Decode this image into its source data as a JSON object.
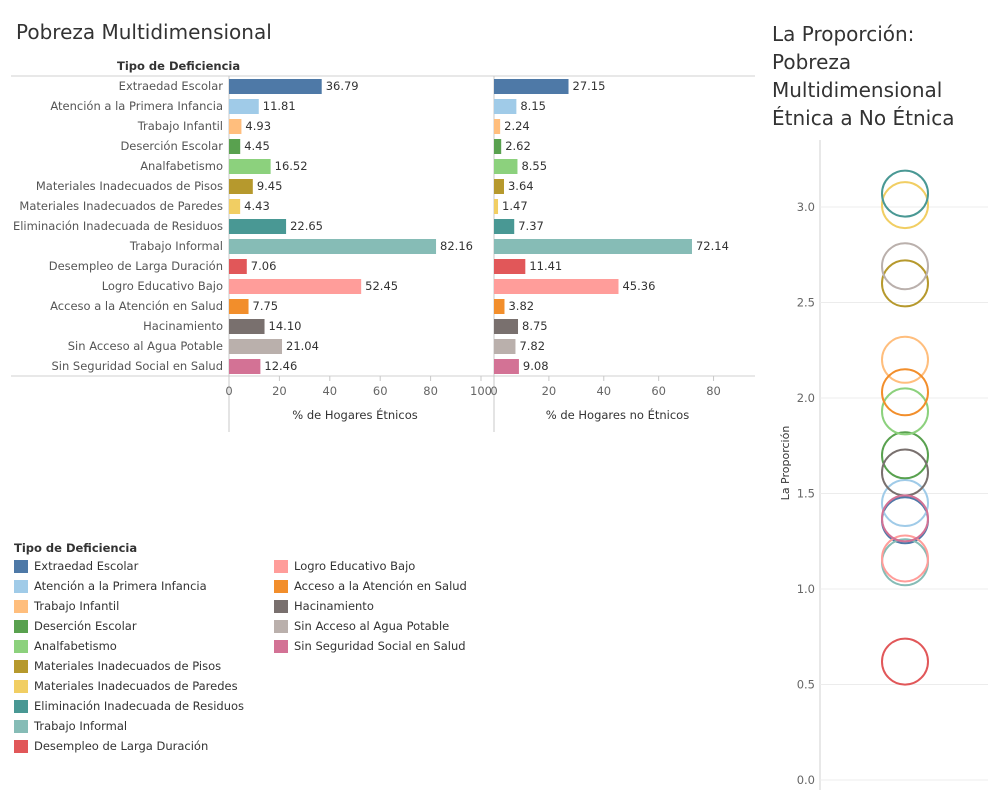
{
  "main_title": "Pobreza Multidimensional",
  "right_title_lines": [
    "La Proporción:",
    "Pobreza",
    "Multidimensional",
    "Étnica a No  Étnica"
  ],
  "field_label": "Tipo de Deficiencia",
  "legend_title": "Tipo de Deficiencia",
  "chart_data": [
    {
      "type": "bar",
      "orientation": "horizontal",
      "xlabel": "% de Hogares Étnicos",
      "xlim": [
        0,
        100
      ],
      "x_ticks": [
        0,
        20,
        40,
        60,
        80,
        100
      ],
      "categories": [
        "Extraedad Escolar",
        "Atención a la Primera Infancia",
        "Trabajo Infantil",
        "Deserción Escolar",
        "Analfabetismo",
        "Materiales Inadecuados de Pisos",
        "Materiales Inadecuados de Paredes",
        "Eliminación Inadecuada de Residuos",
        "Trabajo Informal",
        "Desempleo de Larga Duración",
        "Logro Educativo Bajo",
        "Acceso a la Atención en Salud",
        "Hacinamiento",
        "Sin Acceso al Agua Potable",
        "Sin Seguridad Social en Salud"
      ],
      "values": [
        36.79,
        11.81,
        4.93,
        4.45,
        16.52,
        9.45,
        4.43,
        22.65,
        82.16,
        7.06,
        52.45,
        7.75,
        14.1,
        21.04,
        12.46
      ],
      "value_labels": [
        "36.79",
        "11.81",
        "4.93",
        "4.45",
        "16.52",
        "9.45",
        "4.43",
        "22.65",
        "82.16",
        "7.06",
        "52.45",
        "7.75",
        "14.10",
        "21.04",
        "12.46"
      ]
    },
    {
      "type": "bar",
      "orientation": "horizontal",
      "xlabel": "% de Hogares no Étnicos",
      "xlim": [
        0,
        90
      ],
      "x_ticks": [
        0,
        20,
        40,
        60,
        80
      ],
      "categories": [
        "Extraedad Escolar",
        "Atención a la Primera Infancia",
        "Trabajo Infantil",
        "Deserción Escolar",
        "Analfabetismo",
        "Materiales Inadecuados de Pisos",
        "Materiales Inadecuados de Paredes",
        "Eliminación Inadecuada de Residuos",
        "Trabajo Informal",
        "Desempleo de Larga Duración",
        "Logro Educativo Bajo",
        "Acceso a la Atención en Salud",
        "Hacinamiento",
        "Sin Acceso al Agua Potable",
        "Sin Seguridad Social en Salud"
      ],
      "values": [
        27.15,
        8.15,
        2.24,
        2.62,
        8.55,
        3.64,
        1.47,
        7.37,
        72.14,
        11.41,
        45.36,
        3.82,
        8.75,
        7.82,
        9.08
      ],
      "value_labels": [
        "27.15",
        "8.15",
        "2.24",
        "2.62",
        "8.55",
        "3.64",
        "1.47",
        "7.37",
        "72.14",
        "11.41",
        "45.36",
        "3.82",
        "8.75",
        "7.82",
        "9.08"
      ]
    },
    {
      "type": "scatter",
      "marker": "open-circle",
      "ylabel": "La Proporción",
      "ylim": [
        0,
        3.25
      ],
      "y_ticks": [
        "0.0",
        "0.5",
        "1.0",
        "1.5",
        "2.0",
        "2.5",
        "3.0"
      ],
      "categories": [
        "Extraedad Escolar",
        "Atención a la Primera Infancia",
        "Trabajo Infantil",
        "Deserción Escolar",
        "Analfabetismo",
        "Materiales Inadecuados de Pisos",
        "Materiales Inadecuados de Paredes",
        "Eliminación Inadecuada de Residuos",
        "Trabajo Informal",
        "Desempleo de Larga Duración",
        "Logro Educativo Bajo",
        "Acceso a la Atención en Salud",
        "Hacinamiento",
        "Sin Acceso al Agua Potable",
        "Sin Seguridad Social en Salud"
      ],
      "values": [
        1.36,
        1.45,
        2.2,
        1.7,
        1.93,
        2.6,
        3.01,
        3.07,
        1.14,
        0.62,
        1.16,
        2.03,
        1.61,
        2.69,
        1.37
      ]
    }
  ],
  "legend": {
    "items": [
      {
        "label": "Extraedad Escolar",
        "color": "#4e79a7"
      },
      {
        "label": "Atención a la Primera Infancia",
        "color": "#a0cbe8"
      },
      {
        "label": "Trabajo Infantil",
        "color": "#ffbe7d"
      },
      {
        "label": "Deserción Escolar",
        "color": "#59a14f"
      },
      {
        "label": "Analfabetismo",
        "color": "#8cd17d"
      },
      {
        "label": "Materiales Inadecuados de Pisos",
        "color": "#b6992d"
      },
      {
        "label": "Materiales Inadecuados de Paredes",
        "color": "#f1ce63"
      },
      {
        "label": "Eliminación Inadecuada de Residuos",
        "color": "#499894"
      },
      {
        "label": "Trabajo Informal",
        "color": "#86bcb6"
      },
      {
        "label": "Desempleo de Larga Duración",
        "color": "#e15759"
      },
      {
        "label": "Logro Educativo Bajo",
        "color": "#ff9d9a"
      },
      {
        "label": "Acceso a la Atención en Salud",
        "color": "#f28e2b"
      },
      {
        "label": "Hacinamiento",
        "color": "#79706e"
      },
      {
        "label": "Sin Acceso al Agua Potable",
        "color": "#bab0ac"
      },
      {
        "label": "Sin Seguridad Social en Salud",
        "color": "#d37295"
      }
    ]
  }
}
